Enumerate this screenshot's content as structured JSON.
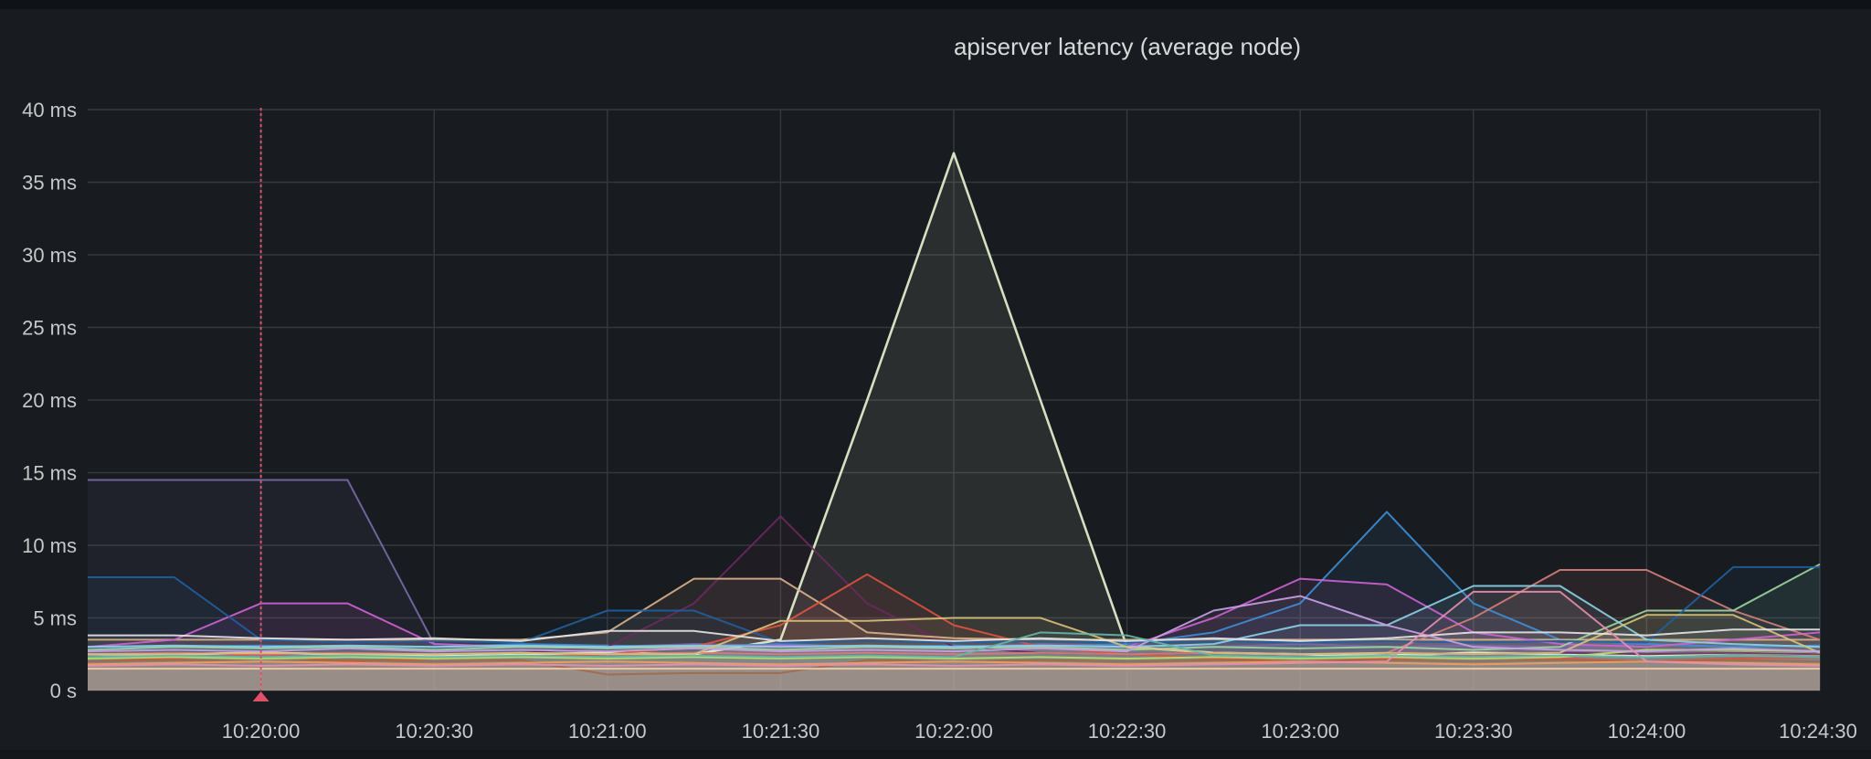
{
  "panel": {
    "title": "apiserver latency (average node)"
  },
  "colors": {
    "background": "#181b1f",
    "grid": "#34373c",
    "cursor": "#e0506b"
  },
  "chart_data": {
    "type": "line",
    "title": "apiserver latency (average node)",
    "xlabel": "",
    "ylabel": "",
    "x_range": [
      "10:19:30",
      "10:24:30"
    ],
    "ylim": [
      0,
      40
    ],
    "y_unit": "ms",
    "y_ticks": [
      "0 s",
      "5 ms",
      "10 ms",
      "15 ms",
      "20 ms",
      "25 ms",
      "30 ms",
      "35 ms",
      "40 ms"
    ],
    "x_ticks": [
      "10:20:00",
      "10:20:30",
      "10:21:00",
      "10:21:30",
      "10:22:00",
      "10:22:30",
      "10:23:00",
      "10:23:30",
      "10:24:00",
      "10:24:30"
    ],
    "grid": true,
    "legend": "none",
    "cursor_time": "10:20:00",
    "x": [
      "10:19:30",
      "10:19:45",
      "10:20:00",
      "10:20:15",
      "10:20:30",
      "10:20:45",
      "10:21:00",
      "10:21:15",
      "10:21:30",
      "10:21:45",
      "10:22:00",
      "10:22:15",
      "10:22:30",
      "10:22:45",
      "10:23:00",
      "10:23:15",
      "10:23:30",
      "10:23:45",
      "10:24:00",
      "10:24:15",
      "10:24:30"
    ],
    "series": [
      {
        "color": "#e8f5d2",
        "values": [
          2.5,
          2.5,
          2.6,
          2.5,
          2.4,
          2.5,
          2.6,
          2.5,
          3.5,
          20,
          37,
          20,
          3.0,
          2.6,
          2.5,
          2.4,
          2.6,
          2.5,
          2.4,
          2.6,
          2.5
        ]
      },
      {
        "color": "#7a6aa8",
        "values": [
          14.5,
          14.5,
          14.5,
          14.5,
          3.2,
          3.0,
          3.0,
          3.2,
          3.1,
          3.0,
          3.0,
          3.2,
          3.1,
          3.0,
          3.2,
          3.0,
          3.1,
          3.0,
          3.2,
          3.0,
          3.1
        ]
      },
      {
        "color": "#3d8fd6",
        "values": [
          3.0,
          3.0,
          3.1,
          3.0,
          3.0,
          3.2,
          3.1,
          3.0,
          3.2,
          3.0,
          3.1,
          3.0,
          3.2,
          4.0,
          6.0,
          12.3,
          6.0,
          3.5,
          3.2,
          3.0,
          3.1
        ]
      },
      {
        "color": "#6a2a5e",
        "values": [
          2.5,
          2.6,
          2.5,
          2.6,
          2.5,
          2.6,
          3.0,
          6.0,
          12.0,
          6.0,
          3.0,
          2.6,
          2.5,
          2.6,
          2.5,
          2.6,
          2.5,
          2.6,
          2.5,
          2.6,
          2.5
        ]
      },
      {
        "color": "#d9b38c",
        "values": [
          3.5,
          3.5,
          3.5,
          3.5,
          3.5,
          3.5,
          4.0,
          7.7,
          7.7,
          4.0,
          3.6,
          3.5,
          3.5,
          3.5,
          3.5,
          3.5,
          3.5,
          3.5,
          3.5,
          3.5,
          3.5
        ]
      },
      {
        "color": "#e0533f",
        "values": [
          2.0,
          2.2,
          2.5,
          2.0,
          2.2,
          2.3,
          2.5,
          3.0,
          4.5,
          8.0,
          4.5,
          3.0,
          2.5,
          2.2,
          2.0,
          2.2,
          2.3,
          2.2,
          2.0,
          2.2,
          2.3
        ]
      },
      {
        "color": "#ce63d4",
        "values": [
          3.0,
          3.5,
          6.0,
          6.0,
          3.2,
          3.0,
          3.0,
          3.0,
          3.1,
          3.0,
          3.0,
          3.1,
          3.0,
          5.0,
          7.7,
          7.3,
          4.0,
          3.2,
          3.0,
          3.5,
          4.0
        ]
      },
      {
        "color": "#d6807a",
        "values": [
          2.5,
          2.6,
          2.5,
          2.6,
          2.5,
          2.6,
          2.5,
          2.6,
          2.5,
          2.6,
          2.5,
          2.6,
          2.5,
          2.6,
          2.5,
          2.6,
          5.0,
          8.3,
          8.3,
          5.5,
          3.5
        ]
      },
      {
        "color": "#9fd6a0",
        "values": [
          2.8,
          3.0,
          2.9,
          3.0,
          2.8,
          3.0,
          2.9,
          3.0,
          2.8,
          3.0,
          2.9,
          3.0,
          2.8,
          3.0,
          2.9,
          3.0,
          2.8,
          3.0,
          5.5,
          5.5,
          8.7
        ]
      },
      {
        "color": "#1f5fa0",
        "values": [
          7.8,
          7.8,
          3.5,
          3.3,
          3.4,
          3.3,
          5.5,
          5.5,
          3.3,
          3.4,
          3.3,
          3.4,
          3.3,
          3.4,
          3.3,
          3.4,
          3.3,
          3.4,
          3.3,
          8.5,
          8.5
        ]
      },
      {
        "color": "#8cd3e8",
        "values": [
          3.0,
          3.1,
          3.0,
          3.1,
          3.0,
          3.1,
          3.0,
          3.1,
          3.0,
          3.1,
          3.0,
          3.1,
          3.0,
          3.2,
          4.5,
          4.5,
          7.2,
          7.2,
          3.5,
          3.2,
          3.0
        ]
      },
      {
        "color": "#d8c27a",
        "values": [
          2.5,
          2.5,
          2.6,
          2.5,
          2.5,
          2.6,
          2.5,
          2.5,
          4.8,
          4.8,
          5.0,
          5.0,
          3.0,
          2.6,
          2.5,
          2.6,
          2.5,
          2.6,
          5.2,
          5.2,
          2.6
        ]
      },
      {
        "color": "#e6e6e6",
        "values": [
          3.8,
          3.8,
          3.6,
          3.5,
          3.6,
          3.4,
          4.1,
          4.1,
          3.4,
          3.6,
          3.4,
          3.6,
          3.4,
          3.6,
          3.4,
          3.6,
          4.0,
          4.0,
          3.8,
          4.2,
          4.2
        ]
      },
      {
        "color": "#a06a4a",
        "values": [
          2.0,
          2.1,
          2.0,
          2.1,
          2.0,
          2.1,
          1.1,
          1.2,
          1.2,
          2.1,
          2.0,
          2.1,
          2.0,
          2.1,
          2.0,
          2.1,
          2.0,
          2.1,
          2.0,
          2.1,
          2.0
        ]
      },
      {
        "color": "#f0a060",
        "values": [
          1.8,
          1.9,
          2.0,
          1.9,
          1.8,
          1.9,
          2.0,
          1.9,
          1.8,
          1.9,
          2.0,
          1.9,
          1.8,
          1.9,
          2.0,
          1.9,
          1.8,
          1.9,
          2.0,
          1.9,
          1.8
        ]
      },
      {
        "color": "#b7e36a",
        "values": [
          2.2,
          2.3,
          2.2,
          2.3,
          2.2,
          2.3,
          2.2,
          2.3,
          2.2,
          2.3,
          2.2,
          2.3,
          2.2,
          2.3,
          2.2,
          2.3,
          2.2,
          2.3,
          2.8,
          2.8,
          2.7
        ]
      },
      {
        "color": "#f5d0a8",
        "values": [
          1.5,
          1.5,
          1.5,
          1.5,
          1.5,
          1.5,
          1.5,
          1.5,
          1.5,
          1.5,
          1.5,
          1.5,
          1.5,
          1.5,
          1.5,
          1.5,
          1.5,
          1.5,
          1.5,
          1.5,
          1.5
        ]
      },
      {
        "color": "#c9a2e8",
        "values": [
          2.7,
          2.8,
          2.7,
          2.9,
          2.7,
          2.8,
          2.7,
          2.9,
          2.7,
          2.8,
          2.7,
          2.9,
          2.7,
          5.5,
          6.5,
          4.5,
          3.0,
          2.8,
          2.7,
          2.9,
          2.7
        ]
      },
      {
        "color": "#e88fb0",
        "values": [
          1.7,
          1.8,
          1.7,
          1.8,
          1.7,
          1.8,
          1.7,
          1.8,
          1.7,
          1.8,
          1.7,
          1.8,
          1.7,
          1.8,
          1.9,
          2.0,
          6.8,
          6.8,
          2.0,
          1.8,
          1.7
        ]
      },
      {
        "color": "#64b8a8",
        "values": [
          2.3,
          2.4,
          2.3,
          2.4,
          2.3,
          2.4,
          2.3,
          2.4,
          2.3,
          2.4,
          2.3,
          4.0,
          3.8,
          2.4,
          2.3,
          2.4,
          2.3,
          2.4,
          2.3,
          2.4,
          2.3
        ]
      }
    ]
  }
}
